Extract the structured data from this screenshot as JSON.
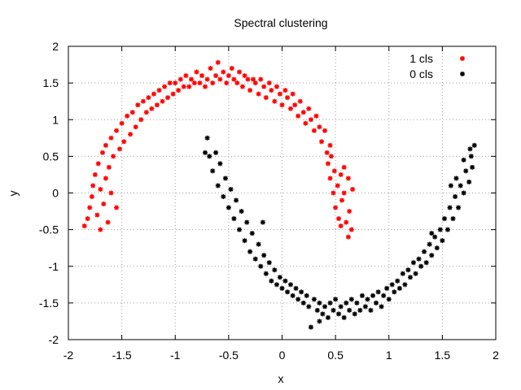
{
  "chart_data": {
    "type": "scatter",
    "title": "Spectral clustering",
    "xlabel": "x",
    "ylabel": "y",
    "xlim": [
      -2,
      2
    ],
    "ylim": [
      -2,
      2
    ],
    "xticks": [
      "-2",
      "-1.5",
      "-1",
      "-0.5",
      "0",
      "0.5",
      "1",
      "1.5",
      "2"
    ],
    "yticks": [
      "-2",
      "-1.5",
      "-1",
      "-0.5",
      "0",
      "0.5",
      "1",
      "1.5",
      "2"
    ],
    "grid": true,
    "legend_position": "top-right",
    "series": [
      {
        "name": "1 cls",
        "color": "#ff0000",
        "points": [
          [
            -1.85,
            -0.45
          ],
          [
            -1.82,
            -0.35
          ],
          [
            -1.8,
            -0.2
          ],
          [
            -1.78,
            -0.05
          ],
          [
            -1.77,
            0.1
          ],
          [
            -1.75,
            0.25
          ],
          [
            -1.73,
            -0.3
          ],
          [
            -1.72,
            0.4
          ],
          [
            -1.7,
            -0.5
          ],
          [
            -1.7,
            0.05
          ],
          [
            -1.68,
            0.55
          ],
          [
            -1.67,
            -0.15
          ],
          [
            -1.65,
            0.2
          ],
          [
            -1.65,
            0.65
          ],
          [
            -1.63,
            -0.4
          ],
          [
            -1.62,
            0.35
          ],
          [
            -1.6,
            0.75
          ],
          [
            -1.6,
            0.0
          ],
          [
            -1.58,
            0.5
          ],
          [
            -1.55,
            0.85
          ],
          [
            -1.55,
            -0.2
          ],
          [
            -1.52,
            0.6
          ],
          [
            -1.5,
            0.95
          ],
          [
            -1.48,
            0.7
          ],
          [
            -1.45,
            1.05
          ],
          [
            -1.42,
            0.8
          ],
          [
            -1.4,
            1.1
          ],
          [
            -1.37,
            0.9
          ],
          [
            -1.35,
            1.2
          ],
          [
            -1.32,
            1.0
          ],
          [
            -1.3,
            1.25
          ],
          [
            -1.27,
            1.1
          ],
          [
            -1.25,
            1.3
          ],
          [
            -1.22,
            1.15
          ],
          [
            -1.2,
            1.35
          ],
          [
            -1.17,
            1.2
          ],
          [
            -1.15,
            1.4
          ],
          [
            -1.12,
            1.25
          ],
          [
            -1.1,
            1.45
          ],
          [
            -1.07,
            1.3
          ],
          [
            -1.05,
            1.5
          ],
          [
            -1.02,
            1.35
          ],
          [
            -1.0,
            1.5
          ],
          [
            -0.97,
            1.4
          ],
          [
            -0.95,
            1.55
          ],
          [
            -0.92,
            1.45
          ],
          [
            -0.9,
            1.6
          ],
          [
            -0.87,
            1.45
          ],
          [
            -0.85,
            1.55
          ],
          [
            -0.82,
            1.5
          ],
          [
            -0.8,
            1.65
          ],
          [
            -0.77,
            1.5
          ],
          [
            -0.75,
            1.6
          ],
          [
            -0.72,
            1.45
          ],
          [
            -0.7,
            1.55
          ],
          [
            -0.67,
            1.7
          ],
          [
            -0.65,
            1.5
          ],
          [
            -0.62,
            1.6
          ],
          [
            -0.6,
            1.78
          ],
          [
            -0.58,
            1.55
          ],
          [
            -0.55,
            1.65
          ],
          [
            -0.52,
            1.5
          ],
          [
            -0.5,
            1.6
          ],
          [
            -0.47,
            1.7
          ],
          [
            -0.45,
            1.55
          ],
          [
            -0.42,
            1.5
          ],
          [
            -0.4,
            1.65
          ],
          [
            -0.37,
            1.45
          ],
          [
            -0.35,
            1.6
          ],
          [
            -0.32,
            1.55
          ],
          [
            -0.3,
            1.4
          ],
          [
            -0.27,
            1.55
          ],
          [
            -0.25,
            1.5
          ],
          [
            -0.22,
            1.35
          ],
          [
            -0.2,
            1.55
          ],
          [
            -0.17,
            1.45
          ],
          [
            -0.15,
            1.3
          ],
          [
            -0.12,
            1.5
          ],
          [
            -0.1,
            1.4
          ],
          [
            -0.07,
            1.25
          ],
          [
            -0.05,
            1.45
          ],
          [
            -0.02,
            1.35
          ],
          [
            0.0,
            1.2
          ],
          [
            0.03,
            1.4
          ],
          [
            0.05,
            1.3
          ],
          [
            0.08,
            1.15
          ],
          [
            0.1,
            1.35
          ],
          [
            0.12,
            1.2
          ],
          [
            0.15,
            1.05
          ],
          [
            0.17,
            1.25
          ],
          [
            0.2,
            1.1
          ],
          [
            0.22,
            0.95
          ],
          [
            0.25,
            1.15
          ],
          [
            0.27,
            1.0
          ],
          [
            0.3,
            0.85
          ],
          [
            0.32,
            1.05
          ],
          [
            0.35,
            0.9
          ],
          [
            0.37,
            0.7
          ],
          [
            0.4,
            0.85
          ],
          [
            0.42,
            0.55
          ],
          [
            0.43,
            0.4
          ],
          [
            0.45,
            0.2
          ],
          [
            0.46,
            0.5
          ],
          [
            0.48,
            0.0
          ],
          [
            0.49,
            0.3
          ],
          [
            0.5,
            -0.2
          ],
          [
            0.52,
            0.1
          ],
          [
            0.53,
            -0.35
          ],
          [
            0.55,
            0.25
          ],
          [
            0.56,
            -0.1
          ],
          [
            0.58,
            0.0
          ],
          [
            0.6,
            -0.4
          ],
          [
            0.62,
            0.2
          ],
          [
            0.63,
            -0.25
          ],
          [
            0.65,
            -0.5
          ],
          [
            0.66,
            0.05
          ],
          [
            0.62,
            -0.6
          ],
          [
            0.55,
            -0.45
          ],
          [
            0.58,
            0.35
          ],
          [
            0.45,
            0.65
          ]
        ]
      },
      {
        "name": "0 cls",
        "color": "#000000",
        "points": [
          [
            -0.7,
            0.75
          ],
          [
            -0.68,
            0.5
          ],
          [
            -0.65,
            0.3
          ],
          [
            -0.62,
            0.55
          ],
          [
            -0.6,
            0.1
          ],
          [
            -0.58,
            0.4
          ],
          [
            -0.55,
            -0.05
          ],
          [
            -0.53,
            0.2
          ],
          [
            -0.5,
            -0.2
          ],
          [
            -0.48,
            0.05
          ],
          [
            -0.45,
            -0.35
          ],
          [
            -0.43,
            -0.1
          ],
          [
            -0.4,
            -0.5
          ],
          [
            -0.38,
            -0.25
          ],
          [
            -0.35,
            -0.65
          ],
          [
            -0.33,
            -0.4
          ],
          [
            -0.3,
            -0.8
          ],
          [
            -0.28,
            -0.55
          ],
          [
            -0.25,
            -0.9
          ],
          [
            -0.22,
            -0.7
          ],
          [
            -0.2,
            -1.0
          ],
          [
            -0.17,
            -0.85
          ],
          [
            -0.15,
            -1.1
          ],
          [
            -0.12,
            -0.95
          ],
          [
            -0.1,
            -1.2
          ],
          [
            -0.07,
            -1.05
          ],
          [
            -0.05,
            -1.25
          ],
          [
            -0.02,
            -1.15
          ],
          [
            0.0,
            -1.3
          ],
          [
            0.03,
            -1.2
          ],
          [
            0.05,
            -1.35
          ],
          [
            0.08,
            -1.25
          ],
          [
            0.1,
            -1.4
          ],
          [
            0.13,
            -1.3
          ],
          [
            0.15,
            -1.45
          ],
          [
            0.18,
            -1.35
          ],
          [
            0.2,
            -1.5
          ],
          [
            0.23,
            -1.4
          ],
          [
            0.25,
            -1.55
          ],
          [
            0.27,
            -1.83
          ],
          [
            0.3,
            -1.45
          ],
          [
            0.33,
            -1.6
          ],
          [
            0.35,
            -1.5
          ],
          [
            0.38,
            -1.65
          ],
          [
            0.4,
            -1.55
          ],
          [
            0.43,
            -1.7
          ],
          [
            0.45,
            -1.5
          ],
          [
            0.48,
            -1.6
          ],
          [
            0.5,
            -1.45
          ],
          [
            0.53,
            -1.65
          ],
          [
            0.55,
            -1.55
          ],
          [
            0.58,
            -1.7
          ],
          [
            0.6,
            -1.5
          ],
          [
            0.63,
            -1.6
          ],
          [
            0.65,
            -1.45
          ],
          [
            0.68,
            -1.65
          ],
          [
            0.7,
            -1.5
          ],
          [
            0.73,
            -1.6
          ],
          [
            0.75,
            -1.4
          ],
          [
            0.78,
            -1.55
          ],
          [
            0.8,
            -1.45
          ],
          [
            0.83,
            -1.6
          ],
          [
            0.85,
            -1.4
          ],
          [
            0.88,
            -1.5
          ],
          [
            0.9,
            -1.35
          ],
          [
            0.93,
            -1.55
          ],
          [
            0.95,
            -1.4
          ],
          [
            0.98,
            -1.3
          ],
          [
            1.0,
            -1.45
          ],
          [
            1.03,
            -1.25
          ],
          [
            1.05,
            -1.35
          ],
          [
            1.08,
            -1.2
          ],
          [
            1.1,
            -1.3
          ],
          [
            1.13,
            -1.1
          ],
          [
            1.15,
            -1.25
          ],
          [
            1.18,
            -1.05
          ],
          [
            1.2,
            -1.15
          ],
          [
            1.23,
            -0.95
          ],
          [
            1.25,
            -1.1
          ],
          [
            1.28,
            -0.9
          ],
          [
            1.3,
            -1.0
          ],
          [
            1.33,
            -0.8
          ],
          [
            1.35,
            -0.95
          ],
          [
            1.38,
            -0.7
          ],
          [
            1.4,
            -0.85
          ],
          [
            1.43,
            -0.6
          ],
          [
            1.45,
            -0.75
          ],
          [
            1.48,
            -0.5
          ],
          [
            1.5,
            -0.65
          ],
          [
            1.52,
            -0.35
          ],
          [
            1.55,
            -0.5
          ],
          [
            1.57,
            -0.2
          ],
          [
            1.6,
            -0.35
          ],
          [
            1.62,
            -0.05
          ],
          [
            1.65,
            -0.2
          ],
          [
            1.67,
            0.1
          ],
          [
            1.7,
            0.0
          ],
          [
            1.72,
            0.3
          ],
          [
            1.75,
            0.15
          ],
          [
            1.77,
            0.5
          ],
          [
            1.78,
            0.35
          ],
          [
            1.8,
            0.65
          ],
          [
            1.76,
            0.6
          ],
          [
            1.7,
            0.45
          ],
          [
            1.63,
            0.2
          ],
          [
            -0.72,
            0.55
          ],
          [
            -0.18,
            -0.4
          ],
          [
            0.35,
            -1.75
          ],
          [
            1.4,
            -0.55
          ],
          [
            1.58,
            0.1
          ]
        ]
      }
    ]
  }
}
